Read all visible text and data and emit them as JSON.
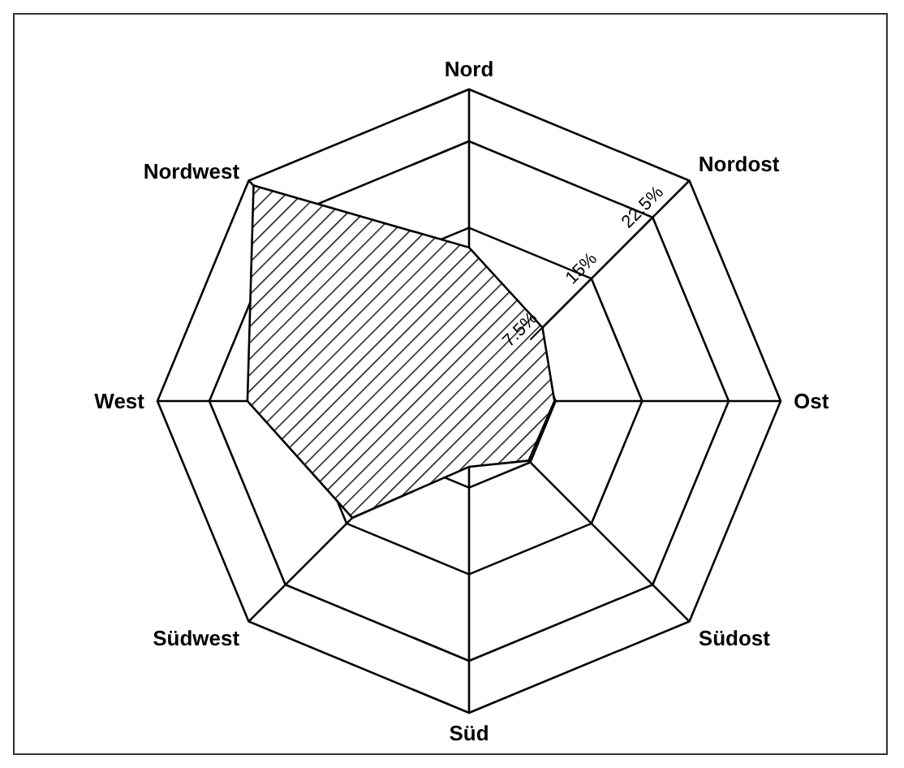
{
  "chart_data": {
    "type": "radar",
    "categories": [
      "Nord",
      "Nordost",
      "Ost",
      "Südost",
      "Süd",
      "Südwest",
      "West",
      "Nordwest"
    ],
    "series": [
      {
        "color": "#000000",
        "values": [
          13.3,
          9,
          7.4,
          7.3,
          5.7,
          14.3,
          19.2,
          26.4
        ]
      }
    ],
    "ylim": [
      0,
      27
    ],
    "yticks": [
      {
        "value": 7.5,
        "label": "7.5%"
      },
      {
        "value": 15,
        "label": "15%"
      },
      {
        "value": 22.5,
        "label": "22.5%"
      }
    ],
    "grid": true,
    "legend": false
  }
}
